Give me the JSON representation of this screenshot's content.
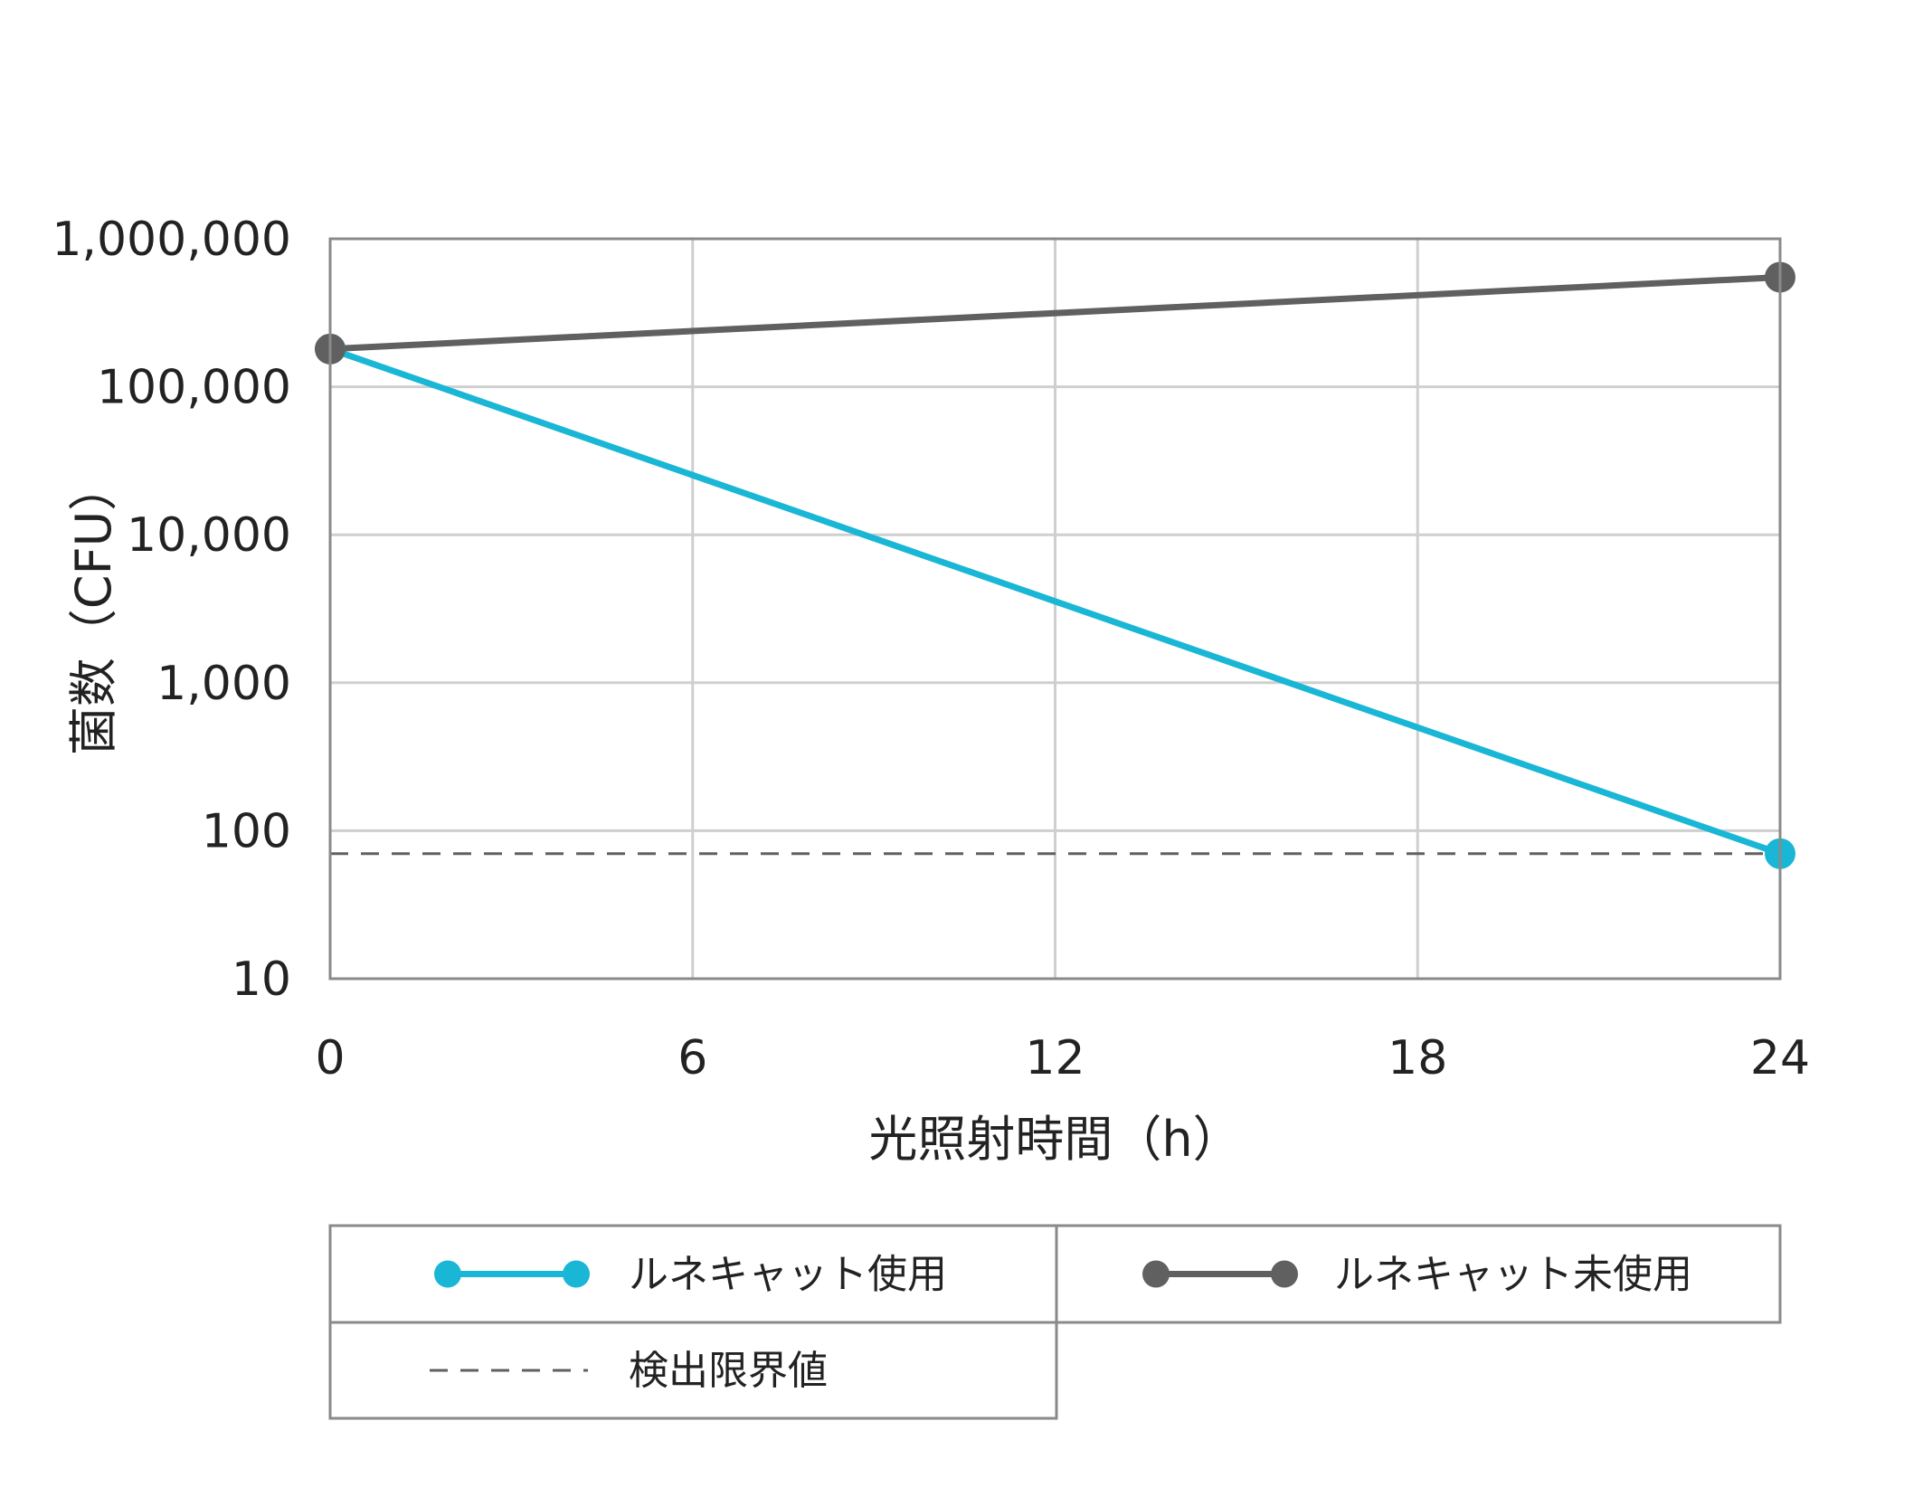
{
  "chart_data": {
    "type": "line",
    "title": "",
    "xlabel": "光照射時間（h）",
    "ylabel": "菌数（CFU）",
    "x": [
      0,
      24
    ],
    "xticks": [
      0,
      6,
      12,
      18,
      24
    ],
    "xlim": [
      0,
      24
    ],
    "ylim": [
      10,
      1000000
    ],
    "yscale": "log",
    "yticks": [
      10,
      100,
      1000,
      10000,
      100000,
      1000000
    ],
    "ytick_labels": [
      "10",
      "100",
      "1,000",
      "10,000",
      "100,000",
      "1,000,000"
    ],
    "grid": true,
    "series": [
      {
        "name": "ルネキャット使用",
        "x": [
          0,
          24
        ],
        "values": [
          180000,
          70
        ],
        "color": "#1ab6d6",
        "style": "solid-markers"
      },
      {
        "name": "ルネキャット未使用",
        "x": [
          0,
          24
        ],
        "values": [
          180000,
          550000
        ],
        "color": "#606060",
        "style": "solid-markers"
      }
    ],
    "reference_lines": [
      {
        "name": "検出限界値",
        "y": 70,
        "color": "#606060",
        "style": "dashed"
      }
    ],
    "legend_position": "bottom"
  }
}
